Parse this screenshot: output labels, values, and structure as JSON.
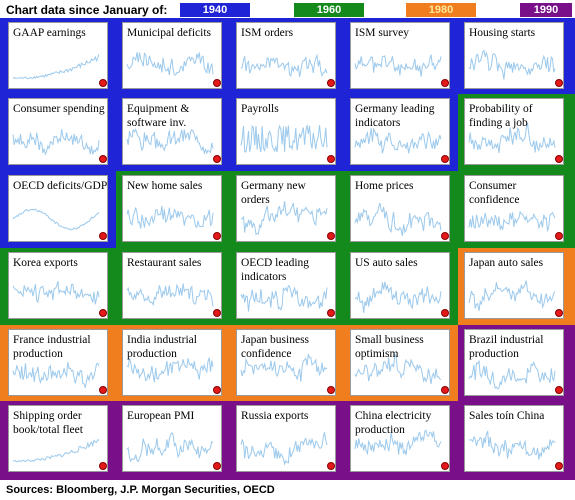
{
  "header": {
    "title": "Chart data since January of:"
  },
  "footer": {
    "sources": "Sources: Bloomberg, J.P. Morgan Securities, OECD"
  },
  "colors": {
    "1940": "#1f25d6",
    "1960": "#148a1c",
    "1980": "#f07d1e",
    "1990": "#7a0f8a",
    "line": "#9cc9ec",
    "dot": "#e31a1a",
    "legend_text_light": "#ffffff",
    "legend_text_1980": "#ffe89a"
  },
  "chart_data": {
    "type": "line",
    "legend": {
      "title": "Chart data since January of:",
      "entries": [
        "1940",
        "1960",
        "1980",
        "1990"
      ]
    },
    "panels": [
      {
        "label": "GAAP earnings",
        "since": "1940",
        "pattern": "rise"
      },
      {
        "label": "Municipal deficits",
        "since": "1940",
        "pattern": "noise"
      },
      {
        "label": "ISM orders",
        "since": "1940",
        "pattern": "noise"
      },
      {
        "label": "ISM survey",
        "since": "1940",
        "pattern": "noise"
      },
      {
        "label": "Housing starts",
        "since": "1940",
        "pattern": "noise"
      },
      {
        "label": "Consumer spending",
        "since": "1940",
        "pattern": "noise"
      },
      {
        "label": "Equipment & software inv.",
        "since": "1940",
        "pattern": "noise"
      },
      {
        "label": "Payrolls",
        "since": "1940",
        "pattern": "spiky"
      },
      {
        "label": "Germany leading indicators",
        "since": "1940",
        "pattern": "noise"
      },
      {
        "label": "Probability of finding a job",
        "since": "1960",
        "pattern": "noise"
      },
      {
        "label": "OECD deficits/GDP",
        "since": "1940",
        "pattern": "wave"
      },
      {
        "label": "New home sales",
        "since": "1960",
        "pattern": "noise"
      },
      {
        "label": "Germany new orders",
        "since": "1960",
        "pattern": "noise"
      },
      {
        "label": "Home prices",
        "since": "1960",
        "pattern": "noise"
      },
      {
        "label": "Consumer confidence",
        "since": "1960",
        "pattern": "noise"
      },
      {
        "label": "Korea exports",
        "since": "1960",
        "pattern": "noise"
      },
      {
        "label": "Restaurant sales",
        "since": "1960",
        "pattern": "noise"
      },
      {
        "label": "OECD leading indicators",
        "since": "1960",
        "pattern": "noise"
      },
      {
        "label": "US auto sales",
        "since": "1960",
        "pattern": "noise"
      },
      {
        "label": "Japan auto sales",
        "since": "1980",
        "pattern": "noise"
      },
      {
        "label": "France industrial production",
        "since": "1980",
        "pattern": "noise"
      },
      {
        "label": "India industrial production",
        "since": "1980",
        "pattern": "noise"
      },
      {
        "label": "Japan business confidence",
        "since": "1980",
        "pattern": "noise"
      },
      {
        "label": "Small business optimism",
        "since": "1980",
        "pattern": "noise"
      },
      {
        "label": "Brazil industrial production",
        "since": "1990",
        "pattern": "noise"
      },
      {
        "label": "Shipping order book/total fleet",
        "since": "1990",
        "pattern": "rise"
      },
      {
        "label": "European PMI",
        "since": "1990",
        "pattern": "noise"
      },
      {
        "label": "Russia exports",
        "since": "1990",
        "pattern": "noise"
      },
      {
        "label": "China electricity production",
        "since": "1990",
        "pattern": "noise"
      },
      {
        "label": "Sales toín China",
        "since": "1990",
        "pattern": "noise"
      }
    ]
  }
}
